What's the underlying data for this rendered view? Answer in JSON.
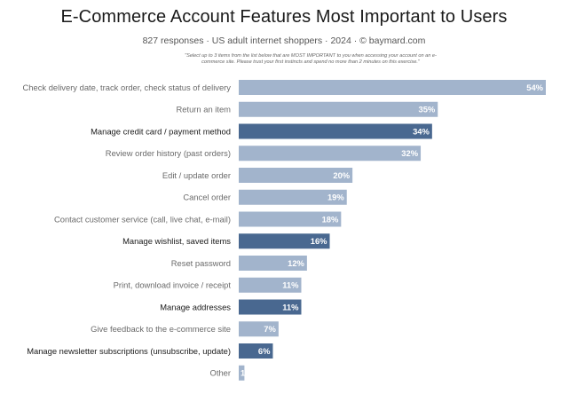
{
  "colors": {
    "bar_default": "#a2b4cc",
    "bar_highlight": "#496890",
    "label_default": "#6a6a6a",
    "label_highlight": "#1a1a1a",
    "value_text": "#ffffff"
  },
  "chart_data": {
    "type": "bar",
    "orientation": "horizontal",
    "title": "E-Commerce Account Features Most Important to Users",
    "subtitle": "827 responses  ·  US adult internet shoppers  ·  2024  ·  ©  baymard.com",
    "note": "\"Select up to 3 items from the list below that are MOST IMPORTANT to you when accessing your account on an e-commerce site. Please trust your first instincts and spend no more than 2 minutes on this exercise.\"",
    "xlim": [
      0,
      54
    ],
    "grid": false,
    "legend": "none",
    "value_suffix": "%",
    "categories": [
      "Check delivery date, track order, check status of delivery",
      "Return an item",
      "Manage credit card / payment method",
      "Review order history (past orders)",
      "Edit / update order",
      "Cancel order",
      "Contact customer service (call, live chat, e-mail)",
      "Manage wishlist, saved items",
      "Reset password",
      "Print, download invoice / receipt",
      "Manage addresses",
      "Give feedback to the e-commerce site",
      "Manage newsletter subscriptions (unsubscribe, update)",
      "Other"
    ],
    "values": [
      54,
      35,
      34,
      32,
      20,
      19,
      18,
      16,
      12,
      11,
      11,
      7,
      6,
      1
    ],
    "value_labels": [
      "54%",
      "35%",
      "34%",
      "32%",
      "20%",
      "19%",
      "18%",
      "16%",
      "12%",
      "11%",
      "11%",
      "7%",
      "6%",
      "1%"
    ],
    "highlighted": [
      false,
      false,
      true,
      false,
      false,
      false,
      false,
      true,
      false,
      false,
      true,
      false,
      true,
      false
    ]
  }
}
